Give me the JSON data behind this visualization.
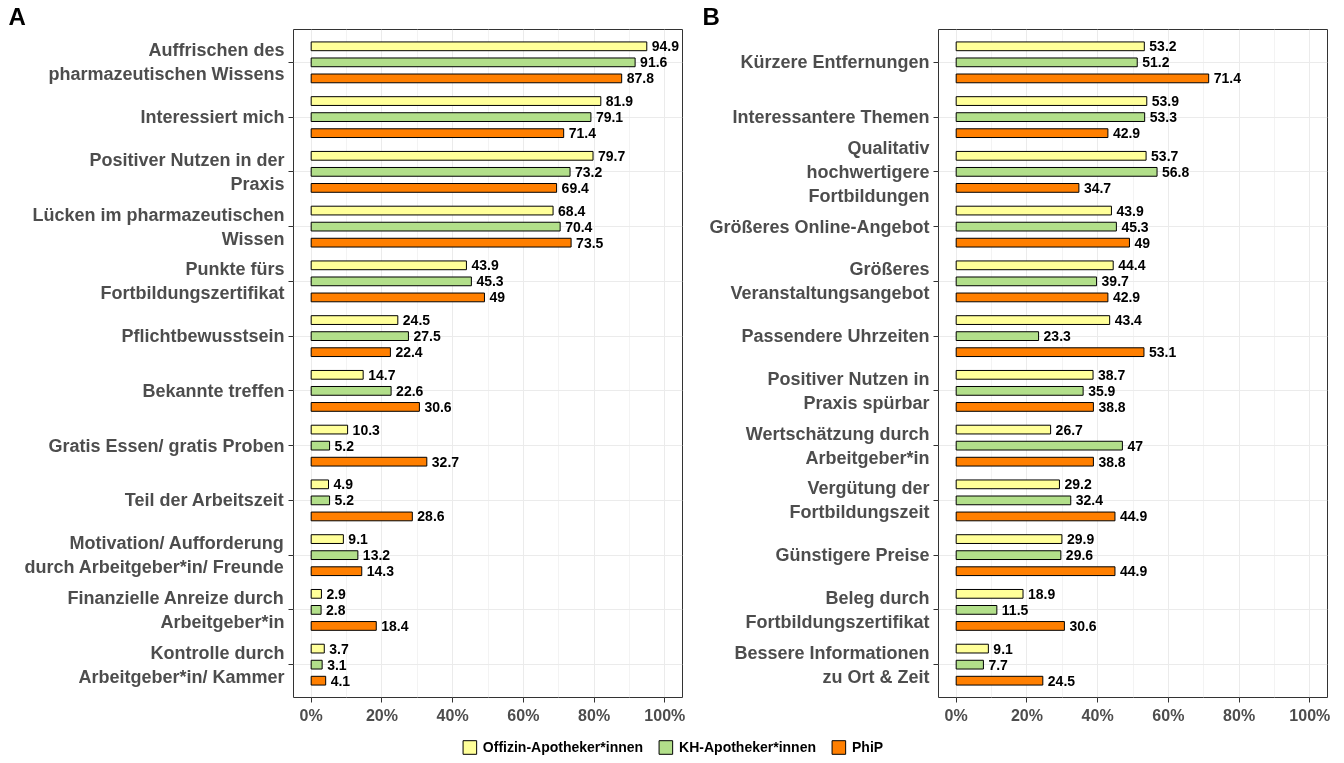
{
  "chart_data": [
    {
      "type": "bar",
      "orientation": "horizontal",
      "title": "A",
      "categories": [
        "Auffrischen des\npharmazeutischen Wissens",
        "Interessiert mich",
        "Positiver Nutzen in der\nPraxis",
        "Lücken im pharmazeutischen\nWissen",
        "Punkte fürs\nFortbildungszertifikat",
        "Pflichtbewusstsein",
        "Bekannte treffen",
        "Gratis Essen/ gratis Proben",
        "Teil der Arbeitszeit",
        "Motivation/ Aufforderung\ndurch Arbeitgeber*in/ Freunde",
        "Finanzielle Anreize durch\nArbeitgeber*in",
        "Kontrolle durch\nArbeitgeber*in/ Kammer"
      ],
      "series": [
        {
          "name": "Offizin-Apotheker*innen",
          "color": "#ffff99",
          "values": [
            94.9,
            81.9,
            79.7,
            68.4,
            43.9,
            24.5,
            14.7,
            10.3,
            4.9,
            9.1,
            2.9,
            3.7
          ]
        },
        {
          "name": "KH-Apotheker*innen",
          "color": "#b2df8a",
          "values": [
            91.6,
            79.1,
            73.2,
            70.4,
            45.3,
            27.5,
            22.6,
            5.2,
            5.2,
            13.2,
            2.8,
            3.1
          ]
        },
        {
          "name": "PhiP",
          "color": "#ff7f00",
          "values": [
            87.8,
            71.4,
            69.4,
            73.5,
            49,
            22.4,
            30.6,
            32.7,
            28.6,
            14.3,
            18.4,
            4.1
          ]
        }
      ],
      "xlim": [
        -5,
        105
      ],
      "xticks": [
        {
          "value": 0,
          "label": "0%"
        },
        {
          "value": 20,
          "label": "20%"
        },
        {
          "value": 40,
          "label": "40%"
        },
        {
          "value": 60,
          "label": "60%"
        },
        {
          "value": 80,
          "label": "80%"
        },
        {
          "value": 100,
          "label": "100%"
        }
      ],
      "grid": true,
      "data_labels": true,
      "legend": "bottom"
    },
    {
      "type": "bar",
      "orientation": "horizontal",
      "title": "B",
      "categories": [
        "Kürzere Entfernungen",
        "Interessantere Themen",
        "Qualitativ\nhochwertigere\nFortbildungen",
        "Größeres Online-Angebot",
        "Größeres\nVeranstaltungsangebot",
        "Passendere Uhrzeiten",
        "Positiver Nutzen in\nPraxis spürbar",
        "Wertschätzung durch\nArbeitgeber*in",
        "Vergütung der\nFortbildungszeit",
        "Günstigere Preise",
        "Beleg durch\nFortbildungszertifikat",
        "Bessere Informationen\nzu Ort & Zeit"
      ],
      "series": [
        {
          "name": "Offizin-Apotheker*innen",
          "color": "#ffff99",
          "values": [
            53.2,
            53.9,
            53.7,
            43.9,
            44.4,
            43.4,
            38.7,
            26.7,
            29.2,
            29.9,
            18.9,
            9.1
          ]
        },
        {
          "name": "KH-Apotheker*innen",
          "color": "#b2df8a",
          "values": [
            51.2,
            53.3,
            56.8,
            45.3,
            39.7,
            23.3,
            35.9,
            47,
            32.4,
            29.6,
            11.5,
            7.7
          ]
        },
        {
          "name": "PhiP",
          "color": "#ff7f00",
          "values": [
            71.4,
            42.9,
            34.7,
            49,
            42.9,
            53.1,
            38.8,
            38.8,
            44.9,
            44.9,
            30.6,
            24.5
          ]
        }
      ],
      "xlim": [
        -5,
        105
      ],
      "xticks": [
        {
          "value": 0,
          "label": "0%"
        },
        {
          "value": 20,
          "label": "20%"
        },
        {
          "value": 40,
          "label": "40%"
        },
        {
          "value": 60,
          "label": "60%"
        },
        {
          "value": 80,
          "label": "80%"
        },
        {
          "value": 100,
          "label": "100%"
        }
      ],
      "grid": true,
      "data_labels": true,
      "legend": "bottom"
    }
  ]
}
